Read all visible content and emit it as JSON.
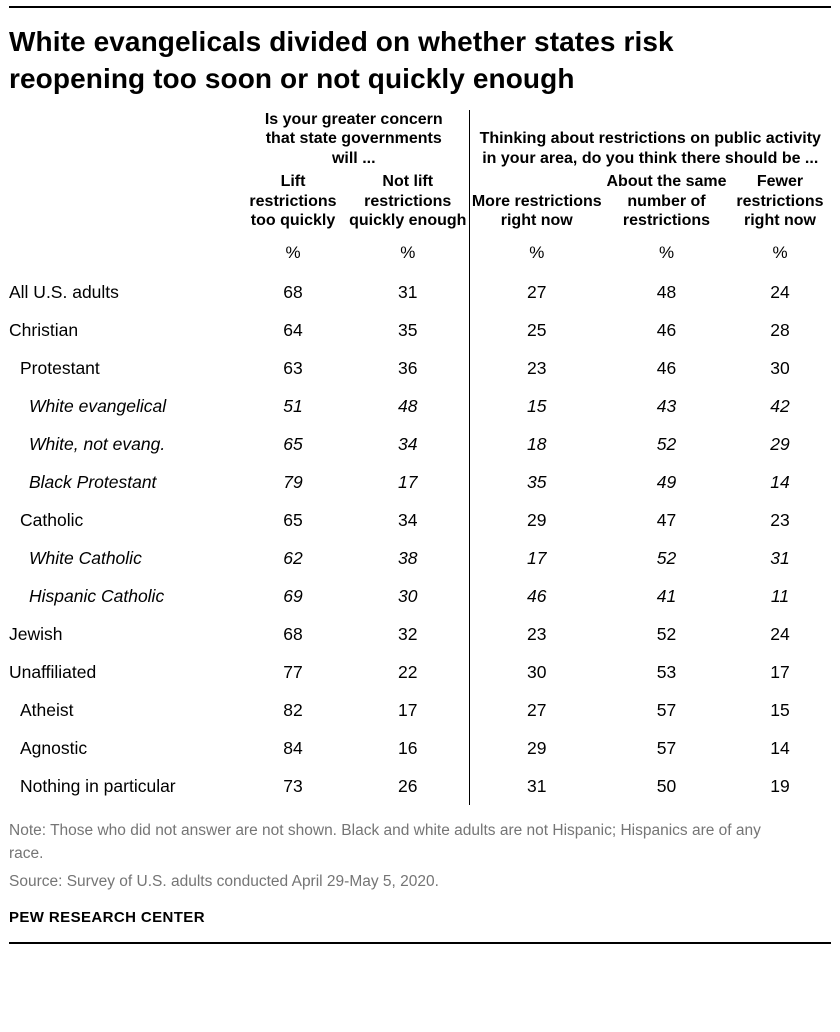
{
  "title": "White evangelicals divided on whether states risk reopening too soon or not quickly enough",
  "chart_data": {
    "type": "table",
    "column_groups": [
      {
        "label": "Is your greater concern that state governments will ...",
        "columns": [
          "Lift restrictions too quickly",
          "Not lift restrictions quickly enough"
        ]
      },
      {
        "label": "Thinking about restrictions on public activity in your area, do you think there should be ...",
        "columns": [
          "More restrictions right now",
          "About the same number of restrictions",
          "Fewer restrictions right now"
        ]
      }
    ],
    "unit_row": [
      "%",
      "%",
      "%",
      "%",
      "%"
    ],
    "rows": [
      {
        "label": "All U.S. adults",
        "indent": 0,
        "italic": false,
        "values": [
          68,
          31,
          27,
          48,
          24
        ]
      },
      {
        "label": "Christian",
        "indent": 0,
        "italic": false,
        "values": [
          64,
          35,
          25,
          46,
          28
        ]
      },
      {
        "label": "Protestant",
        "indent": 1,
        "italic": false,
        "values": [
          63,
          36,
          23,
          46,
          30
        ]
      },
      {
        "label": "White evangelical",
        "indent": 2,
        "italic": true,
        "values": [
          51,
          48,
          15,
          43,
          42
        ]
      },
      {
        "label": "White, not evang.",
        "indent": 2,
        "italic": true,
        "values": [
          65,
          34,
          18,
          52,
          29
        ]
      },
      {
        "label": "Black Protestant",
        "indent": 2,
        "italic": true,
        "values": [
          79,
          17,
          35,
          49,
          14
        ]
      },
      {
        "label": "Catholic",
        "indent": 1,
        "italic": false,
        "values": [
          65,
          34,
          29,
          47,
          23
        ]
      },
      {
        "label": "White Catholic",
        "indent": 2,
        "italic": true,
        "values": [
          62,
          38,
          17,
          52,
          31
        ]
      },
      {
        "label": "Hispanic Catholic",
        "indent": 2,
        "italic": true,
        "values": [
          69,
          30,
          46,
          41,
          11
        ]
      },
      {
        "label": "Jewish",
        "indent": 0,
        "italic": false,
        "values": [
          68,
          32,
          23,
          52,
          24
        ]
      },
      {
        "label": "Unaffiliated",
        "indent": 0,
        "italic": false,
        "values": [
          77,
          22,
          30,
          53,
          17
        ]
      },
      {
        "label": "Atheist",
        "indent": 1,
        "italic": false,
        "values": [
          82,
          17,
          27,
          57,
          15
        ]
      },
      {
        "label": "Agnostic",
        "indent": 1,
        "italic": false,
        "values": [
          84,
          16,
          29,
          57,
          14
        ]
      },
      {
        "label": "Nothing in particular",
        "indent": 1,
        "italic": false,
        "values": [
          73,
          26,
          31,
          50,
          19
        ]
      }
    ]
  },
  "note": "Note: Those who did not answer are not shown. Black and white adults are not Hispanic; Hispanics are of any race.",
  "source": "Source: Survey of U.S. adults conducted April 29-May 5, 2020.",
  "footer": "PEW RESEARCH CENTER",
  "colors": {
    "text": "#000000",
    "note_gray": "#757575",
    "rule": "#000000"
  }
}
